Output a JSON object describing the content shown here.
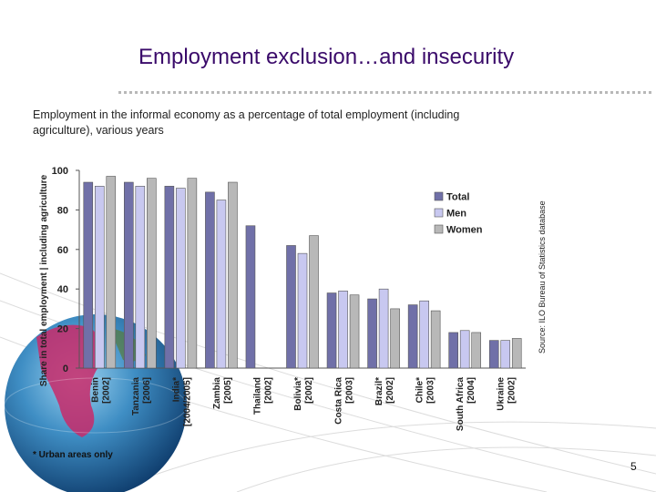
{
  "slide": {
    "title": "Employment exclusion…and insecurity",
    "subtitle": "Employment in the informal economy as a percentage of total employment (including agriculture), various years",
    "source": "Source: ILO Bureau of Statistics database",
    "footnote": "* Urban areas only",
    "page_number": "5"
  },
  "chart_data": {
    "type": "bar",
    "ylabel": "Share in total employment | including agriculture",
    "ylim": [
      0,
      100
    ],
    "yticks": [
      0,
      20,
      40,
      60,
      80,
      100
    ],
    "grid": false,
    "legend": "right",
    "categories": [
      "Benin [2002]",
      "Tanzania [2006]",
      "India* [2004/2005]",
      "Zambia [2005]",
      "Thailand [2002]",
      "Bolivia* [2002]",
      "Costa Rica [2003]",
      "Brazil* [2002]",
      "Chile* [2003]",
      "South Africa [2004]",
      "Ukraine [2002]"
    ],
    "series": [
      {
        "name": "Total",
        "color": "#7070a8",
        "values": [
          94,
          94,
          92,
          89,
          72,
          62,
          38,
          35,
          32,
          18,
          14
        ]
      },
      {
        "name": "Men",
        "color": "#c8c8f0",
        "values": [
          92,
          92,
          91,
          85,
          null,
          58,
          39,
          40,
          34,
          19,
          14
        ]
      },
      {
        "name": "Women",
        "color": "#b8b8b8",
        "values": [
          97,
          96,
          96,
          94,
          null,
          67,
          37,
          30,
          29,
          18,
          15
        ]
      }
    ]
  }
}
